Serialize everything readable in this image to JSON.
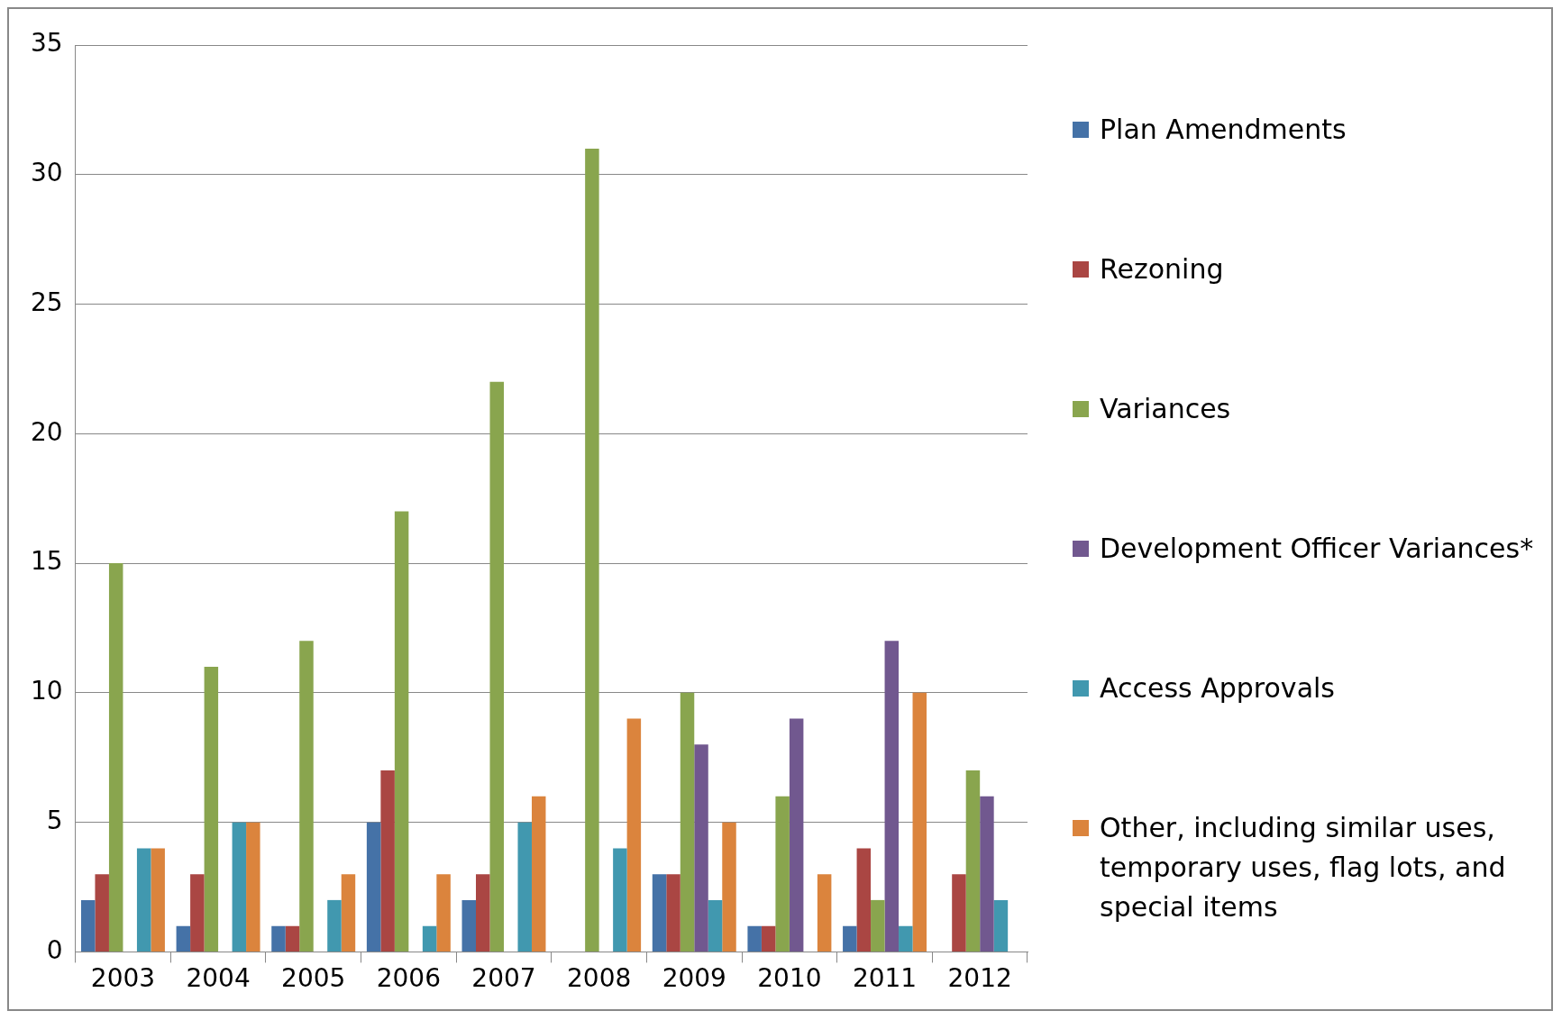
{
  "chart_data": {
    "type": "bar",
    "categories": [
      "2003",
      "2004",
      "2005",
      "2006",
      "2007",
      "2008",
      "2009",
      "2010",
      "2011",
      "2012"
    ],
    "series": [
      {
        "name": "Plan Amendments",
        "color": "#4572a7",
        "values": [
          2,
          1,
          1,
          5,
          2,
          0,
          3,
          1,
          1,
          0
        ]
      },
      {
        "name": "Rezoning",
        "color": "#aa4643",
        "values": [
          3,
          3,
          1,
          7,
          3,
          0,
          3,
          1,
          4,
          3
        ]
      },
      {
        "name": "Variances",
        "color": "#89a54e",
        "values": [
          15,
          11,
          12,
          17,
          22,
          31,
          10,
          6,
          2,
          7
        ]
      },
      {
        "name": "Development Officer Variances*",
        "color": "#71588f",
        "values": [
          0,
          0,
          0,
          0,
          0,
          0,
          8,
          9,
          12,
          6
        ]
      },
      {
        "name": "Access Approvals",
        "color": "#4198af",
        "values": [
          4,
          5,
          2,
          1,
          5,
          4,
          2,
          0,
          1,
          2
        ]
      },
      {
        "name": "Other, including similar uses, temporary uses, flag lots, and special items",
        "color": "#db843d",
        "values": [
          4,
          5,
          3,
          3,
          6,
          9,
          5,
          3,
          10,
          0
        ]
      }
    ],
    "ylim": [
      0,
      35
    ],
    "yticks": [
      0,
      5,
      10,
      15,
      20,
      25,
      30,
      35
    ],
    "grid": "y",
    "legend": "right"
  }
}
